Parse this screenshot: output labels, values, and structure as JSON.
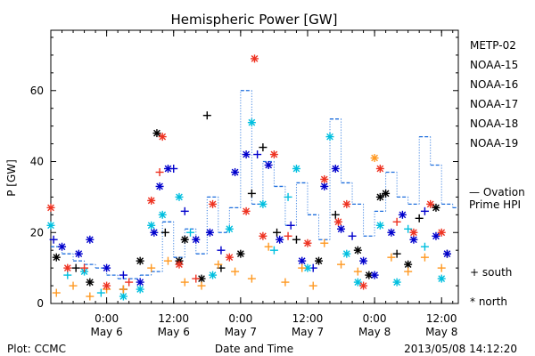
{
  "chart_data": {
    "type": "scatter",
    "title": "Hemispheric Power [GW]",
    "ylabel": "P [GW]",
    "xlabel": "Date and Time",
    "ylim": [
      0,
      77
    ],
    "yticks": [
      0,
      20,
      40,
      60
    ],
    "xlim": [
      "2013-05-05T14:00",
      "2013-05-08T15:00"
    ],
    "xticks": [
      {
        "time": "2013-05-06T00:00",
        "label1": "0:00",
        "label2": "May 6"
      },
      {
        "time": "2013-05-06T12:00",
        "label1": "12:00",
        "label2": "May 6"
      },
      {
        "time": "2013-05-07T00:00",
        "label1": "0:00",
        "label2": "May 7"
      },
      {
        "time": "2013-05-07T12:00",
        "label1": "12:00",
        "label2": "May 7"
      },
      {
        "time": "2013-05-08T00:00",
        "label1": "0:00",
        "label2": "May 8"
      },
      {
        "time": "2013-05-08T12:00",
        "label1": "12:00",
        "label2": "May 8"
      }
    ],
    "footer_left": "Plot: CCMC",
    "footer_right": "2013/05/08 14:12:20",
    "symbol_legend": {
      "south": "+ south",
      "north": "* north"
    },
    "series": [
      {
        "name": "METP-02",
        "color": "#000000",
        "points": [
          {
            "x": "2013-05-05T15:00",
            "y": 13,
            "m": "north"
          },
          {
            "x": "2013-05-05T18:30",
            "y": 10,
            "m": "south"
          },
          {
            "x": "2013-05-05T21:00",
            "y": 6,
            "m": "north"
          },
          {
            "x": "2013-05-06T03:00",
            "y": 4,
            "m": "south"
          },
          {
            "x": "2013-05-06T06:00",
            "y": 12,
            "m": "north"
          },
          {
            "x": "2013-05-06T09:00",
            "y": 48,
            "m": "north"
          },
          {
            "x": "2013-05-06T10:30",
            "y": 20,
            "m": "south"
          },
          {
            "x": "2013-05-06T13:00",
            "y": 12,
            "m": "north"
          },
          {
            "x": "2013-05-06T14:00",
            "y": 18,
            "m": "north"
          },
          {
            "x": "2013-05-06T17:00",
            "y": 7,
            "m": "north"
          },
          {
            "x": "2013-05-06T18:00",
            "y": 53,
            "m": "south"
          },
          {
            "x": "2013-05-06T20:30",
            "y": 10,
            "m": "south"
          },
          {
            "x": "2013-05-07T00:00",
            "y": 14,
            "m": "north"
          },
          {
            "x": "2013-05-07T02:00",
            "y": 31,
            "m": "south"
          },
          {
            "x": "2013-05-07T04:00",
            "y": 44,
            "m": "south"
          },
          {
            "x": "2013-05-07T06:30",
            "y": 20,
            "m": "south"
          },
          {
            "x": "2013-05-07T10:00",
            "y": 18,
            "m": "south"
          },
          {
            "x": "2013-05-07T14:00",
            "y": 12,
            "m": "north"
          },
          {
            "x": "2013-05-07T17:00",
            "y": 25,
            "m": "south"
          },
          {
            "x": "2013-05-07T21:00",
            "y": 15,
            "m": "north"
          },
          {
            "x": "2013-05-07T23:00",
            "y": 8,
            "m": "north"
          },
          {
            "x": "2013-05-08T01:00",
            "y": 30,
            "m": "north"
          },
          {
            "x": "2013-05-08T02:00",
            "y": 31,
            "m": "north"
          },
          {
            "x": "2013-05-08T04:00",
            "y": 14,
            "m": "south"
          },
          {
            "x": "2013-05-08T06:00",
            "y": 11,
            "m": "north"
          },
          {
            "x": "2013-05-08T08:00",
            "y": 24,
            "m": "south"
          },
          {
            "x": "2013-05-08T11:00",
            "y": 27,
            "m": "north"
          },
          {
            "x": "2013-05-08T13:00",
            "y": 14,
            "m": "south"
          }
        ]
      },
      {
        "name": "NOAA-15",
        "color": "#0000cc",
        "points": [
          {
            "x": "2013-05-05T14:30",
            "y": 18,
            "m": "south"
          },
          {
            "x": "2013-05-05T16:00",
            "y": 16,
            "m": "north"
          },
          {
            "x": "2013-05-05T19:00",
            "y": 14,
            "m": "north"
          },
          {
            "x": "2013-05-05T21:00",
            "y": 18,
            "m": "north"
          },
          {
            "x": "2013-05-06T00:00",
            "y": 10,
            "m": "north"
          },
          {
            "x": "2013-05-06T03:00",
            "y": 8,
            "m": "south"
          },
          {
            "x": "2013-05-06T06:00",
            "y": 6,
            "m": "north"
          },
          {
            "x": "2013-05-06T08:30",
            "y": 20,
            "m": "north"
          },
          {
            "x": "2013-05-06T09:30",
            "y": 33,
            "m": "north"
          },
          {
            "x": "2013-05-06T11:00",
            "y": 38,
            "m": "north"
          },
          {
            "x": "2013-05-06T12:00",
            "y": 38,
            "m": "south"
          },
          {
            "x": "2013-05-06T14:00",
            "y": 26,
            "m": "south"
          },
          {
            "x": "2013-05-06T16:00",
            "y": 18,
            "m": "north"
          },
          {
            "x": "2013-05-06T18:30",
            "y": 20,
            "m": "north"
          },
          {
            "x": "2013-05-06T20:30",
            "y": 15,
            "m": "south"
          },
          {
            "x": "2013-05-06T23:00",
            "y": 37,
            "m": "north"
          },
          {
            "x": "2013-05-07T01:00",
            "y": 42,
            "m": "north"
          },
          {
            "x": "2013-05-07T03:00",
            "y": 42,
            "m": "south"
          },
          {
            "x": "2013-05-07T05:00",
            "y": 39,
            "m": "north"
          },
          {
            "x": "2013-05-07T07:00",
            "y": 18,
            "m": "north"
          },
          {
            "x": "2013-05-07T09:00",
            "y": 22,
            "m": "south"
          },
          {
            "x": "2013-05-07T11:00",
            "y": 12,
            "m": "north"
          },
          {
            "x": "2013-05-07T13:00",
            "y": 10,
            "m": "south"
          },
          {
            "x": "2013-05-07T15:00",
            "y": 33,
            "m": "north"
          },
          {
            "x": "2013-05-07T17:00",
            "y": 38,
            "m": "north"
          },
          {
            "x": "2013-05-07T18:00",
            "y": 21,
            "m": "north"
          },
          {
            "x": "2013-05-07T20:00",
            "y": 19,
            "m": "south"
          },
          {
            "x": "2013-05-07T22:00",
            "y": 12,
            "m": "north"
          },
          {
            "x": "2013-05-08T00:00",
            "y": 8,
            "m": "north"
          },
          {
            "x": "2013-05-08T03:00",
            "y": 20,
            "m": "north"
          },
          {
            "x": "2013-05-08T05:00",
            "y": 25,
            "m": "north"
          },
          {
            "x": "2013-05-08T07:00",
            "y": 18,
            "m": "north"
          },
          {
            "x": "2013-05-08T09:00",
            "y": 26,
            "m": "south"
          },
          {
            "x": "2013-05-08T11:00",
            "y": 19,
            "m": "north"
          },
          {
            "x": "2013-05-08T13:00",
            "y": 14,
            "m": "north"
          }
        ]
      },
      {
        "name": "NOAA-16",
        "color": "#00bfdf",
        "points": [
          {
            "x": "2013-05-05T14:00",
            "y": 22,
            "m": "north"
          },
          {
            "x": "2013-05-05T17:00",
            "y": 8,
            "m": "south"
          },
          {
            "x": "2013-05-05T20:00",
            "y": 9,
            "m": "north"
          },
          {
            "x": "2013-05-05T23:00",
            "y": 3,
            "m": "south"
          },
          {
            "x": "2013-05-06T03:00",
            "y": 2,
            "m": "north"
          },
          {
            "x": "2013-05-06T06:00",
            "y": 4,
            "m": "north"
          },
          {
            "x": "2013-05-06T08:00",
            "y": 22,
            "m": "north"
          },
          {
            "x": "2013-05-06T10:00",
            "y": 25,
            "m": "north"
          },
          {
            "x": "2013-05-06T13:00",
            "y": 30,
            "m": "north"
          },
          {
            "x": "2013-05-06T15:00",
            "y": 20,
            "m": "south"
          },
          {
            "x": "2013-05-06T19:00",
            "y": 8,
            "m": "north"
          },
          {
            "x": "2013-05-06T22:00",
            "y": 21,
            "m": "north"
          },
          {
            "x": "2013-05-07T02:00",
            "y": 51,
            "m": "north"
          },
          {
            "x": "2013-05-07T04:00",
            "y": 28,
            "m": "north"
          },
          {
            "x": "2013-05-07T06:00",
            "y": 15,
            "m": "south"
          },
          {
            "x": "2013-05-07T08:30",
            "y": 30,
            "m": "south"
          },
          {
            "x": "2013-05-07T10:00",
            "y": 38,
            "m": "north"
          },
          {
            "x": "2013-05-07T12:00",
            "y": 10,
            "m": "north"
          },
          {
            "x": "2013-05-07T16:00",
            "y": 47,
            "m": "north"
          },
          {
            "x": "2013-05-07T19:00",
            "y": 14,
            "m": "north"
          },
          {
            "x": "2013-05-07T21:00",
            "y": 6,
            "m": "north"
          },
          {
            "x": "2013-05-08T01:00",
            "y": 22,
            "m": "north"
          },
          {
            "x": "2013-05-08T04:00",
            "y": 6,
            "m": "north"
          },
          {
            "x": "2013-05-08T06:00",
            "y": 21,
            "m": "south"
          },
          {
            "x": "2013-05-08T09:00",
            "y": 16,
            "m": "south"
          },
          {
            "x": "2013-05-08T12:00",
            "y": 7,
            "m": "north"
          }
        ]
      },
      {
        "name": "NOAA-17",
        "color": "#33dd55",
        "points": []
      },
      {
        "name": "NOAA-18",
        "color": "#ff9922",
        "points": [
          {
            "x": "2013-05-05T15:00",
            "y": 3,
            "m": "south"
          },
          {
            "x": "2013-05-05T18:00",
            "y": 5,
            "m": "south"
          },
          {
            "x": "2013-05-05T21:00",
            "y": 2,
            "m": "south"
          },
          {
            "x": "2013-05-06T00:00",
            "y": 4,
            "m": "south"
          },
          {
            "x": "2013-05-06T03:00",
            "y": 4,
            "m": "south"
          },
          {
            "x": "2013-05-06T08:00",
            "y": 10,
            "m": "south"
          },
          {
            "x": "2013-05-06T11:00",
            "y": 12,
            "m": "south"
          },
          {
            "x": "2013-05-06T14:00",
            "y": 6,
            "m": "south"
          },
          {
            "x": "2013-05-06T17:00",
            "y": 5,
            "m": "south"
          },
          {
            "x": "2013-05-06T20:00",
            "y": 11,
            "m": "south"
          },
          {
            "x": "2013-05-06T23:00",
            "y": 9,
            "m": "south"
          },
          {
            "x": "2013-05-07T02:00",
            "y": 7,
            "m": "south"
          },
          {
            "x": "2013-05-07T05:00",
            "y": 16,
            "m": "south"
          },
          {
            "x": "2013-05-07T08:00",
            "y": 6,
            "m": "south"
          },
          {
            "x": "2013-05-07T11:00",
            "y": 10,
            "m": "south"
          },
          {
            "x": "2013-05-07T13:00",
            "y": 5,
            "m": "south"
          },
          {
            "x": "2013-05-07T15:00",
            "y": 17,
            "m": "south"
          },
          {
            "x": "2013-05-07T18:00",
            "y": 11,
            "m": "south"
          },
          {
            "x": "2013-05-07T21:00",
            "y": 9,
            "m": "south"
          },
          {
            "x": "2013-05-08T00:00",
            "y": 41,
            "m": "north"
          },
          {
            "x": "2013-05-08T03:00",
            "y": 13,
            "m": "south"
          },
          {
            "x": "2013-05-08T06:00",
            "y": 9,
            "m": "south"
          },
          {
            "x": "2013-05-08T09:00",
            "y": 13,
            "m": "south"
          },
          {
            "x": "2013-05-08T12:00",
            "y": 10,
            "m": "south"
          }
        ]
      },
      {
        "name": "NOAA-19",
        "color": "#ee3322",
        "points": [
          {
            "x": "2013-05-05T14:00",
            "y": 27,
            "m": "north"
          },
          {
            "x": "2013-05-05T17:00",
            "y": 10,
            "m": "north"
          },
          {
            "x": "2013-05-05T20:00",
            "y": 10,
            "m": "south"
          },
          {
            "x": "2013-05-06T00:00",
            "y": 5,
            "m": "north"
          },
          {
            "x": "2013-05-06T04:00",
            "y": 6,
            "m": "south"
          },
          {
            "x": "2013-05-06T08:00",
            "y": 29,
            "m": "north"
          },
          {
            "x": "2013-05-06T09:30",
            "y": 37,
            "m": "south"
          },
          {
            "x": "2013-05-06T10:00",
            "y": 47,
            "m": "north"
          },
          {
            "x": "2013-05-06T13:00",
            "y": 11,
            "m": "north"
          },
          {
            "x": "2013-05-06T16:00",
            "y": 7,
            "m": "south"
          },
          {
            "x": "2013-05-06T19:00",
            "y": 28,
            "m": "north"
          },
          {
            "x": "2013-05-06T22:00",
            "y": 13,
            "m": "north"
          },
          {
            "x": "2013-05-07T01:00",
            "y": 26,
            "m": "north"
          },
          {
            "x": "2013-05-07T02:30",
            "y": 69,
            "m": "north"
          },
          {
            "x": "2013-05-07T04:00",
            "y": 19,
            "m": "north"
          },
          {
            "x": "2013-05-07T06:00",
            "y": 42,
            "m": "north"
          },
          {
            "x": "2013-05-07T08:30",
            "y": 19,
            "m": "south"
          },
          {
            "x": "2013-05-07T12:00",
            "y": 17,
            "m": "north"
          },
          {
            "x": "2013-05-07T15:00",
            "y": 35,
            "m": "north"
          },
          {
            "x": "2013-05-07T17:30",
            "y": 23,
            "m": "north"
          },
          {
            "x": "2013-05-07T19:00",
            "y": 28,
            "m": "north"
          },
          {
            "x": "2013-05-07T22:00",
            "y": 5,
            "m": "north"
          },
          {
            "x": "2013-05-08T01:00",
            "y": 38,
            "m": "north"
          },
          {
            "x": "2013-05-08T04:00",
            "y": 23,
            "m": "south"
          },
          {
            "x": "2013-05-08T07:00",
            "y": 20,
            "m": "north"
          },
          {
            "x": "2013-05-08T10:00",
            "y": 28,
            "m": "north"
          },
          {
            "x": "2013-05-08T12:00",
            "y": 20,
            "m": "north"
          }
        ]
      }
    ],
    "ovation": {
      "name": "Ovation Prime HPI",
      "name_lines": [
        "Ovation",
        "Prime HPI"
      ],
      "legend_symbol": "—",
      "color": "#1f6fdd",
      "points": [
        {
          "x": "2013-05-05T14:00",
          "y": 16
        },
        {
          "x": "2013-05-05T16:00",
          "y": 14
        },
        {
          "x": "2013-05-05T18:00",
          "y": 12
        },
        {
          "x": "2013-05-05T20:00",
          "y": 11
        },
        {
          "x": "2013-05-05T22:00",
          "y": 10
        },
        {
          "x": "2013-05-06T00:00",
          "y": 8
        },
        {
          "x": "2013-05-06T02:00",
          "y": 7
        },
        {
          "x": "2013-05-06T04:00",
          "y": 7
        },
        {
          "x": "2013-05-06T06:00",
          "y": 8
        },
        {
          "x": "2013-05-06T08:00",
          "y": 9
        },
        {
          "x": "2013-05-06T10:00",
          "y": 23
        },
        {
          "x": "2013-05-06T12:00",
          "y": 13
        },
        {
          "x": "2013-05-06T14:00",
          "y": 21
        },
        {
          "x": "2013-05-06T16:00",
          "y": 14
        },
        {
          "x": "2013-05-06T18:00",
          "y": 30
        },
        {
          "x": "2013-05-06T20:00",
          "y": 20
        },
        {
          "x": "2013-05-06T22:00",
          "y": 27
        },
        {
          "x": "2013-05-07T00:00",
          "y": 60
        },
        {
          "x": "2013-05-07T02:00",
          "y": 28
        },
        {
          "x": "2013-05-07T04:00",
          "y": 40
        },
        {
          "x": "2013-05-07T06:00",
          "y": 33
        },
        {
          "x": "2013-05-07T08:00",
          "y": 22
        },
        {
          "x": "2013-05-07T10:00",
          "y": 34
        },
        {
          "x": "2013-05-07T12:00",
          "y": 25
        },
        {
          "x": "2013-05-07T14:00",
          "y": 18
        },
        {
          "x": "2013-05-07T16:00",
          "y": 52
        },
        {
          "x": "2013-05-07T18:00",
          "y": 34
        },
        {
          "x": "2013-05-07T20:00",
          "y": 28
        },
        {
          "x": "2013-05-07T22:00",
          "y": 19
        },
        {
          "x": "2013-05-08T00:00",
          "y": 26
        },
        {
          "x": "2013-05-08T02:00",
          "y": 37
        },
        {
          "x": "2013-05-08T04:00",
          "y": 30
        },
        {
          "x": "2013-05-08T06:00",
          "y": 28
        },
        {
          "x": "2013-05-08T08:00",
          "y": 47
        },
        {
          "x": "2013-05-08T10:00",
          "y": 39
        },
        {
          "x": "2013-05-08T12:00",
          "y": 28
        },
        {
          "x": "2013-05-08T14:00",
          "y": 27
        }
      ]
    }
  }
}
